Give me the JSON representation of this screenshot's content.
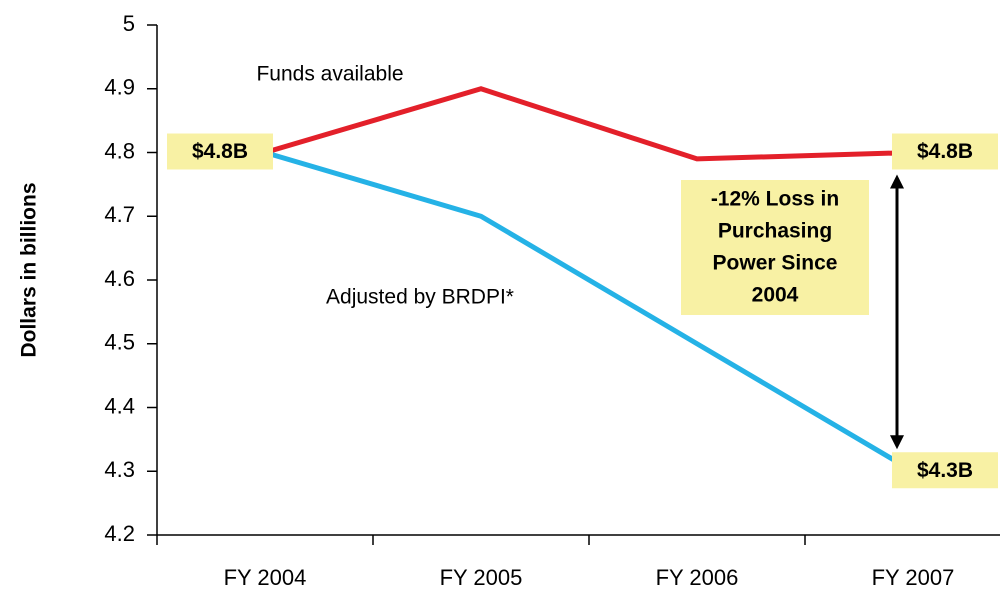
{
  "chart_data": {
    "type": "line",
    "y_label": "Dollars in billions",
    "categories": [
      "FY 2004",
      "FY 2005",
      "FY 2006",
      "FY 2007"
    ],
    "series": [
      {
        "name": "Funds available",
        "color": "#e3202a",
        "values": [
          4.8,
          4.9,
          4.79,
          4.8
        ],
        "value_labels": [
          "$4.8B",
          null,
          null,
          "$4.8B"
        ]
      },
      {
        "name": "Adjusted by BRDPI*",
        "color": "#25b2e6",
        "values": [
          4.8,
          4.7,
          4.5,
          4.3
        ],
        "value_labels": [
          null,
          null,
          null,
          "$4.3B"
        ]
      }
    ],
    "annotations": [
      {
        "lines": [
          "-12% Loss in",
          "Purchasing",
          "Power Since",
          "2004"
        ]
      }
    ],
    "ylim": [
      4.2,
      5
    ],
    "yticks": [
      4.2,
      4.3,
      4.4,
      4.5,
      4.6,
      4.7,
      4.8,
      4.9,
      5
    ],
    "grid": false
  }
}
